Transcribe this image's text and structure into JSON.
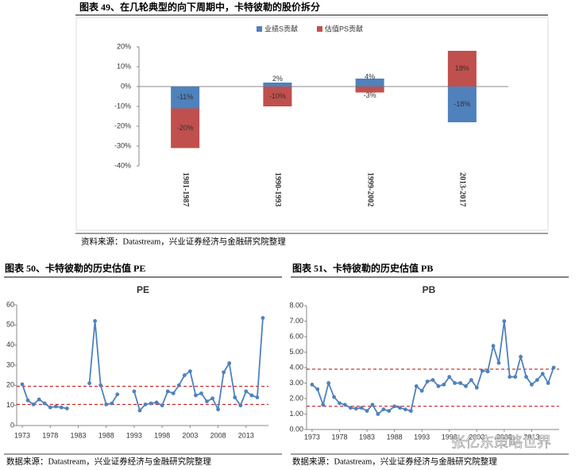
{
  "document": {
    "captions": [
      "图表 49、在几轮典型的向下周期中，卡特彼勒的股价拆分",
      "图表 50、卡特彼勒的历史估值 PE",
      "图表 51、卡特彼勒的历史估值 PB"
    ],
    "sources": [
      "资料来源：Datastream，兴业证券经济与金融研究院整理",
      "数据来源：Datastream，兴业证券经济与金融研究院整理",
      "数据来源：Datastream，兴业证券经济与金融研究院整理"
    ],
    "watermark": "张亿东策略世界"
  },
  "chart_data": [
    {
      "type": "bar",
      "stacked": true,
      "categories": [
        "1981-1987",
        "1990-1993",
        "1999-2002",
        "2013-2017"
      ],
      "series": [
        {
          "name": "业绩S贡献",
          "color": "#4f81bd",
          "values": [
            -11,
            2,
            4,
            -18
          ],
          "value_labels": [
            "-11%",
            "2%",
            "4%",
            "-18%"
          ]
        },
        {
          "name": "估值PS贡献",
          "color": "#c0504d",
          "values": [
            -20,
            -10,
            -3,
            18
          ],
          "value_labels": [
            "-20%",
            "-10%",
            "-3%",
            "18%"
          ]
        }
      ],
      "ylim": [
        -40,
        20
      ],
      "yticks": [
        {
          "value": -40,
          "label": "-40%"
        },
        {
          "value": -30,
          "label": "-30%"
        },
        {
          "value": -20,
          "label": "-20%"
        },
        {
          "value": -10,
          "label": "-10%"
        },
        {
          "value": 0,
          "label": "0%"
        },
        {
          "value": 10,
          "label": "10%"
        },
        {
          "value": 20,
          "label": "20%"
        }
      ],
      "legend": "top"
    },
    {
      "type": "line",
      "title": "PE",
      "color": "#4f81bd",
      "x": [
        1973,
        1974,
        1975,
        1976,
        1977,
        1978,
        1979,
        1980,
        1981,
        1982,
        1983,
        1984,
        1985,
        1986,
        1987,
        1988,
        1989,
        1990,
        1991,
        1992,
        1993,
        1994,
        1995,
        1996,
        1997,
        1998,
        1999,
        2000,
        2001,
        2002,
        2003,
        2004,
        2005,
        2006,
        2007,
        2008,
        2009,
        2010,
        2011,
        2012,
        2013,
        2014,
        2015,
        2016
      ],
      "values": [
        20.5,
        12.5,
        10.5,
        13,
        11,
        9,
        9.5,
        9,
        8.5,
        null,
        null,
        null,
        21,
        52,
        20,
        10.5,
        11,
        15.5,
        null,
        null,
        17,
        7.5,
        10.5,
        11,
        11.5,
        10,
        17,
        16,
        20,
        25,
        27,
        15,
        16,
        12,
        13.5,
        8,
        26.5,
        31,
        14,
        10,
        17,
        15,
        14,
        53.5
      ],
      "xlim": [
        1972,
        2017
      ],
      "xticks": [
        1973,
        1978,
        1983,
        1988,
        1993,
        1998,
        2003,
        2008,
        2013
      ],
      "ylim": [
        0,
        60
      ],
      "yticks": [
        0,
        10,
        20,
        30,
        40,
        50,
        60
      ],
      "reference_lines": [
        19.5,
        10.5
      ],
      "reference_color": "#c00000"
    },
    {
      "type": "line",
      "title": "PB",
      "color": "#4f81bd",
      "x": [
        1973,
        1974,
        1975,
        1976,
        1977,
        1978,
        1979,
        1980,
        1981,
        1982,
        1983,
        1984,
        1985,
        1986,
        1987,
        1988,
        1989,
        1990,
        1991,
        1992,
        1993,
        1994,
        1995,
        1996,
        1997,
        1998,
        1999,
        2000,
        2001,
        2002,
        2003,
        2004,
        2005,
        2006,
        2007,
        2008,
        2009,
        2010,
        2011,
        2012,
        2013,
        2014,
        2015,
        2016,
        2017
      ],
      "values": [
        2.9,
        2.6,
        1.6,
        3.0,
        2.1,
        1.7,
        1.6,
        1.4,
        1.35,
        1.4,
        1.2,
        1.6,
        1.0,
        1.3,
        1.2,
        1.5,
        1.4,
        1.3,
        1.2,
        2.8,
        2.5,
        3.1,
        3.2,
        2.8,
        2.9,
        3.4,
        3.0,
        3.0,
        2.8,
        3.2,
        2.7,
        3.8,
        3.75,
        5.4,
        4.3,
        7.0,
        3.4,
        3.4,
        4.7,
        3.4,
        2.9,
        3.2,
        3.6,
        3.0,
        4.0
      ],
      "xlim": [
        1972,
        2018
      ],
      "xticks": [
        1973,
        1978,
        1983,
        1988,
        1993,
        1998,
        2003,
        2008,
        2013
      ],
      "ylim": [
        0,
        8
      ],
      "yticks": [
        {
          "value": 0,
          "label": "0.00"
        },
        {
          "value": 1,
          "label": "1.00"
        },
        {
          "value": 2,
          "label": "2.00"
        },
        {
          "value": 3,
          "label": "3.00"
        },
        {
          "value": 4,
          "label": "4.00"
        },
        {
          "value": 5,
          "label": "5.00"
        },
        {
          "value": 6,
          "label": "6.00"
        },
        {
          "value": 7,
          "label": "7.00"
        },
        {
          "value": 8,
          "label": "8.00"
        }
      ],
      "reference_lines": [
        3.9,
        1.5
      ],
      "reference_color": "#c00000"
    }
  ]
}
